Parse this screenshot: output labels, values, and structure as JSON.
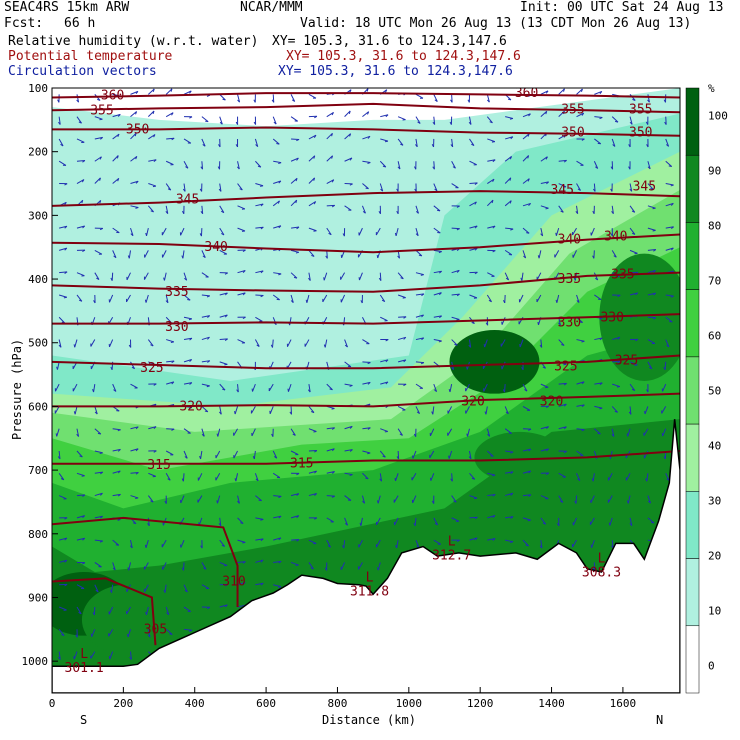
{
  "header": {
    "model": "SEAC4RS 15km ARW",
    "center": "NCAR/MMM",
    "init": "Init: 00 UTC Sat 24 Aug 13",
    "fcst_label": "Fcst:",
    "fcst_value": "66 h",
    "valid": "Valid: 18 UTC Mon 26 Aug 13 (13 CDT Mon 26 Aug 13)"
  },
  "fields": [
    {
      "name": "Relative humidity (w.r.t. water)",
      "xy": "XY= 105.3, 31.6 to 124.3,147.6",
      "color": "#000000"
    },
    {
      "name": "Potential temperature",
      "xy": "XY= 105.3, 31.6 to 124.3,147.6",
      "color": "#a01010"
    },
    {
      "name": "Circulation vectors",
      "xy": "XY= 105.3, 31.6 to 124.3,147.6",
      "color": "#1020a0"
    }
  ],
  "chart_data": {
    "type": "cross-section",
    "xlabel": "Distance (km)",
    "ylabel": "Pressure (hPa)",
    "xlim": [
      0,
      1760
    ],
    "ylim": [
      1050,
      100
    ],
    "xticks": [
      0,
      200,
      400,
      600,
      800,
      1000,
      1200,
      1400,
      1600
    ],
    "yticks": [
      100,
      200,
      300,
      400,
      500,
      600,
      700,
      800,
      900,
      1000
    ],
    "end_labels": {
      "left": "S",
      "right": "N"
    },
    "colorbar": {
      "unit": "%",
      "ticks": [
        0,
        10,
        20,
        30,
        40,
        50,
        60,
        70,
        80,
        90,
        100
      ],
      "colors": [
        "#ffffff",
        "#b0f0e0",
        "#80e8c8",
        "#a0f0a0",
        "#70e070",
        "#40d040",
        "#20b030",
        "#108820",
        "#006010"
      ]
    },
    "terrain": [
      [
        0,
        1008
      ],
      [
        100,
        1008
      ],
      [
        200,
        1008
      ],
      [
        240,
        1005
      ],
      [
        300,
        980
      ],
      [
        400,
        955
      ],
      [
        500,
        930
      ],
      [
        560,
        905
      ],
      [
        620,
        893
      ],
      [
        660,
        880
      ],
      [
        700,
        865
      ],
      [
        760,
        870
      ],
      [
        800,
        878
      ],
      [
        860,
        880
      ],
      [
        880,
        882
      ],
      [
        900,
        895
      ],
      [
        940,
        870
      ],
      [
        980,
        830
      ],
      [
        1040,
        820
      ],
      [
        1080,
        835
      ],
      [
        1140,
        830
      ],
      [
        1200,
        835
      ],
      [
        1300,
        830
      ],
      [
        1360,
        840
      ],
      [
        1420,
        815
      ],
      [
        1470,
        830
      ],
      [
        1500,
        855
      ],
      [
        1540,
        860
      ],
      [
        1580,
        815
      ],
      [
        1630,
        815
      ],
      [
        1660,
        840
      ],
      [
        1700,
        780
      ],
      [
        1730,
        720
      ],
      [
        1745,
        620
      ],
      [
        1760,
        700
      ]
    ],
    "theta_contours": [
      {
        "label": "360",
        "levels": [
          [
            0,
            115
          ],
          [
            300,
            112
          ],
          [
            600,
            108
          ],
          [
            900,
            108
          ],
          [
            1200,
            110
          ],
          [
            1500,
            112
          ],
          [
            1760,
            115
          ]
        ],
        "label_positions": [
          [
            170,
            112
          ],
          [
            1330,
            108
          ]
        ]
      },
      {
        "label": "355",
        "levels": [
          [
            0,
            135
          ],
          [
            300,
            132
          ],
          [
            600,
            130
          ],
          [
            900,
            125
          ],
          [
            1200,
            132
          ],
          [
            1500,
            135
          ],
          [
            1760,
            138
          ]
        ],
        "label_positions": [
          [
            140,
            135
          ],
          [
            1460,
            134
          ],
          [
            1650,
            134
          ]
        ]
      },
      {
        "label": "350",
        "levels": [
          [
            0,
            165
          ],
          [
            300,
            165
          ],
          [
            600,
            162
          ],
          [
            900,
            165
          ],
          [
            1200,
            170
          ],
          [
            1500,
            172
          ],
          [
            1760,
            175
          ]
        ],
        "label_positions": [
          [
            240,
            165
          ],
          [
            1460,
            170
          ],
          [
            1650,
            170
          ]
        ]
      },
      {
        "label": "345",
        "levels": [
          [
            0,
            285
          ],
          [
            300,
            280
          ],
          [
            600,
            272
          ],
          [
            900,
            265
          ],
          [
            1200,
            262
          ],
          [
            1500,
            265
          ],
          [
            1760,
            270
          ]
        ],
        "label_positions": [
          [
            380,
            275
          ],
          [
            1430,
            260
          ],
          [
            1660,
            255
          ]
        ]
      },
      {
        "label": "340",
        "levels": [
          [
            0,
            343
          ],
          [
            300,
            345
          ],
          [
            600,
            352
          ],
          [
            900,
            358
          ],
          [
            1200,
            350
          ],
          [
            1500,
            338
          ],
          [
            1760,
            330
          ]
        ],
        "label_positions": [
          [
            460,
            350
          ],
          [
            1450,
            338
          ],
          [
            1580,
            333
          ]
        ]
      },
      {
        "label": "335",
        "levels": [
          [
            0,
            410
          ],
          [
            300,
            415
          ],
          [
            600,
            418
          ],
          [
            900,
            420
          ],
          [
            1200,
            410
          ],
          [
            1500,
            395
          ],
          [
            1760,
            390
          ]
        ],
        "label_positions": [
          [
            350,
            420
          ],
          [
            1450,
            400
          ],
          [
            1600,
            393
          ]
        ]
      },
      {
        "label": "330",
        "levels": [
          [
            0,
            470
          ],
          [
            300,
            470
          ],
          [
            600,
            468
          ],
          [
            900,
            470
          ],
          [
            1200,
            465
          ],
          [
            1500,
            460
          ],
          [
            1760,
            455
          ]
        ],
        "label_positions": [
          [
            350,
            475
          ],
          [
            1450,
            468
          ],
          [
            1570,
            460
          ]
        ]
      },
      {
        "label": "325",
        "levels": [
          [
            0,
            530
          ],
          [
            300,
            535
          ],
          [
            600,
            540
          ],
          [
            900,
            540
          ],
          [
            1200,
            535
          ],
          [
            1500,
            530
          ],
          [
            1760,
            520
          ]
        ],
        "label_positions": [
          [
            280,
            540
          ],
          [
            1440,
            537
          ],
          [
            1610,
            528
          ]
        ]
      },
      {
        "label": "320",
        "levels": [
          [
            0,
            600
          ],
          [
            300,
            600
          ],
          [
            600,
            598
          ],
          [
            900,
            600
          ],
          [
            1200,
            590
          ],
          [
            1500,
            585
          ],
          [
            1760,
            580
          ]
        ],
        "label_positions": [
          [
            390,
            600
          ],
          [
            1180,
            592
          ],
          [
            1400,
            592
          ]
        ]
      },
      {
        "label": "315",
        "levels": [
          [
            0,
            690
          ],
          [
            300,
            690
          ],
          [
            600,
            690
          ],
          [
            900,
            685
          ],
          [
            1200,
            685
          ],
          [
            1500,
            680
          ],
          [
            1760,
            670
          ]
        ],
        "label_positions": [
          [
            300,
            692
          ],
          [
            700,
            690
          ]
        ]
      },
      {
        "label": "310",
        "levels": [
          [
            0,
            785
          ],
          [
            200,
            775
          ],
          [
            480,
            790
          ],
          [
            520,
            850
          ],
          [
            520,
            915
          ]
        ],
        "label_positions": [
          [
            510,
            875
          ]
        ]
      },
      {
        "label": "305",
        "levels": [
          [
            0,
            875
          ],
          [
            150,
            870
          ],
          [
            280,
            900
          ],
          [
            290,
            975
          ]
        ],
        "label_positions": [
          [
            290,
            950
          ]
        ]
      }
    ],
    "lows": [
      {
        "symbol": "L",
        "value": "301.1",
        "x": 90,
        "p": 995
      },
      {
        "symbol": "L",
        "value": "311.8",
        "x": 890,
        "p": 875
      },
      {
        "symbol": "L",
        "value": "312.7",
        "x": 1120,
        "p": 818
      },
      {
        "symbol": "L",
        "value": "308.3",
        "x": 1540,
        "p": 845
      }
    ]
  }
}
